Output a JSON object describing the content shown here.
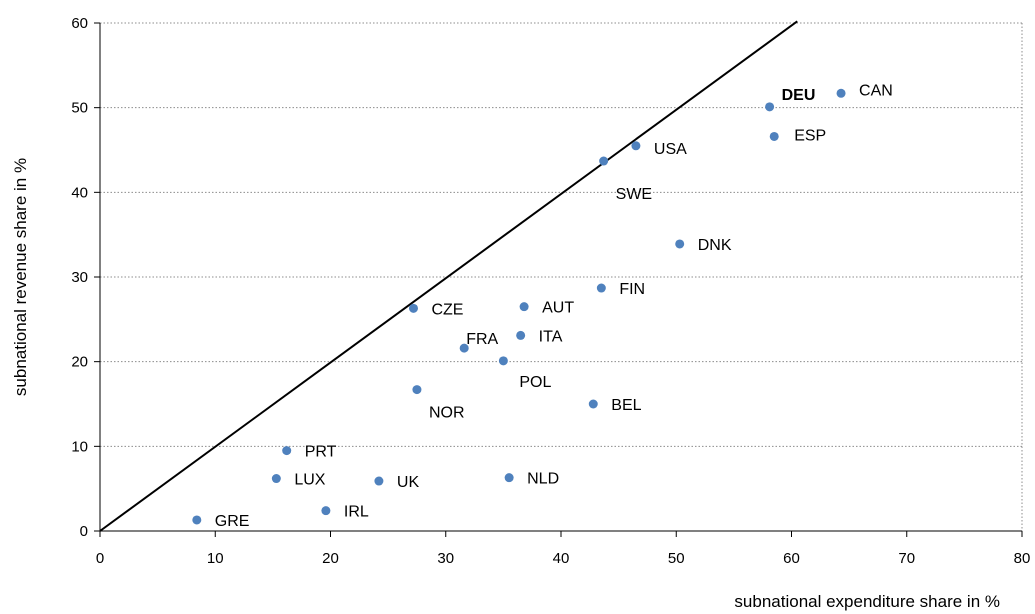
{
  "chart_data": {
    "type": "scatter",
    "title": "",
    "xlabel": "subnational expenditure share in %",
    "ylabel": "subnational revenue share in %",
    "xlim": [
      0,
      80
    ],
    "ylim": [
      0,
      60
    ],
    "x_ticks": [
      "0",
      "10",
      "20",
      "30",
      "40",
      "50",
      "60",
      "70",
      "80"
    ],
    "y_ticks": [
      "0",
      "10",
      "20",
      "30",
      "40",
      "50",
      "60"
    ],
    "grid": "horizontal dotted",
    "point_color": "#4f81bd",
    "reference_line": {
      "from": [
        0,
        0
      ],
      "to": [
        60.5,
        60.2
      ]
    },
    "points": [
      {
        "label": "DEU",
        "x": 58.1,
        "y": 50.1,
        "bold": true
      },
      {
        "label": "CAN",
        "x": 64.3,
        "y": 51.7
      },
      {
        "label": "ESP",
        "x": 58.5,
        "y": 46.6
      },
      {
        "label": "USA",
        "x": 46.5,
        "y": 45.5
      },
      {
        "label": "SWE",
        "x": 43.7,
        "y": 43.7
      },
      {
        "label": "DNK",
        "x": 50.3,
        "y": 33.9
      },
      {
        "label": "FIN",
        "x": 43.5,
        "y": 28.7
      },
      {
        "label": "CZE",
        "x": 27.2,
        "y": 26.3
      },
      {
        "label": "AUT",
        "x": 36.8,
        "y": 26.5
      },
      {
        "label": "ITA",
        "x": 36.5,
        "y": 23.1
      },
      {
        "label": "FRA",
        "x": 31.6,
        "y": 21.6
      },
      {
        "label": "POL",
        "x": 35.0,
        "y": 20.1
      },
      {
        "label": "NOR",
        "x": 27.5,
        "y": 16.7
      },
      {
        "label": "BEL",
        "x": 42.8,
        "y": 15.0
      },
      {
        "label": "PRT",
        "x": 16.2,
        "y": 9.5
      },
      {
        "label": "LUX",
        "x": 15.3,
        "y": 6.2
      },
      {
        "label": "UK",
        "x": 24.2,
        "y": 5.9
      },
      {
        "label": "NLD",
        "x": 35.5,
        "y": 6.3
      },
      {
        "label": "IRL",
        "x": 19.6,
        "y": 2.4
      },
      {
        "label": "GRE",
        "x": 8.4,
        "y": 1.3
      }
    ]
  }
}
